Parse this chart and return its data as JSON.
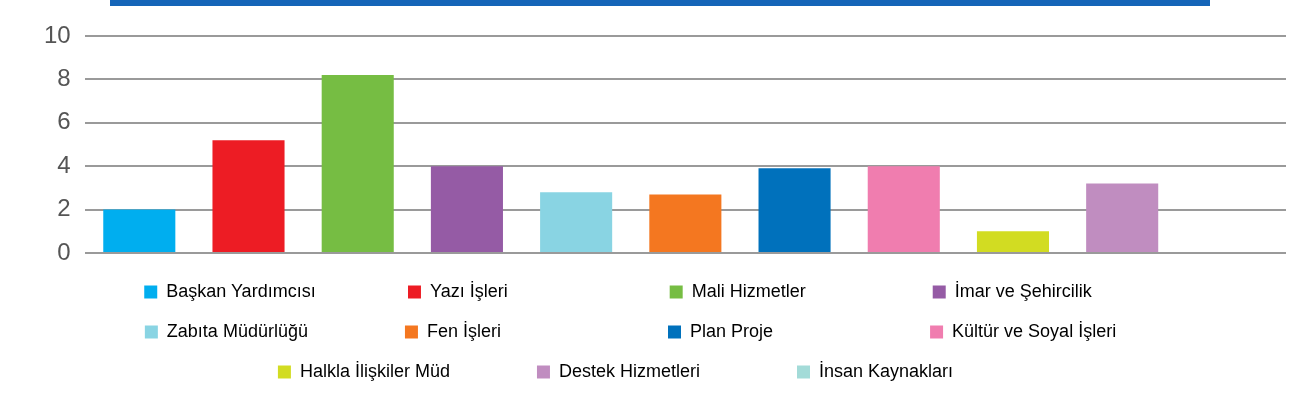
{
  "chart_data": {
    "type": "bar",
    "categories": [
      null
    ],
    "series": [
      {
        "name": "Başkan Yardımcısı",
        "color": "#00aeef",
        "values": [
          2
        ]
      },
      {
        "name": "Yazı İşleri",
        "color": "#ed1c24",
        "values": [
          5.2
        ]
      },
      {
        "name": "Mali Hizmetler",
        "color": "#76bd43",
        "values": [
          8.2
        ]
      },
      {
        "name": "İmar ve Şehircilik",
        "color": "#955ba5",
        "values": [
          4
        ]
      },
      {
        "name": "Zabıta Müdürlüğü",
        "color": "#89d4e3",
        "values": [
          2.8
        ]
      },
      {
        "name": "Fen İşleri",
        "color": "#f47720",
        "values": [
          2.7
        ]
      },
      {
        "name": "Plan Proje",
        "color": "#0071bc",
        "values": [
          3.9
        ]
      },
      {
        "name": "Kültür ve Soyal İşleri",
        "color": "#f07daf",
        "values": [
          4
        ]
      },
      {
        "name": "Halkla İlişkiler Müd",
        "color": "#d2dc22",
        "values": [
          1
        ]
      },
      {
        "name": "Destek Hizmetleri",
        "color": "#c08dc0",
        "values": [
          3.2
        ]
      },
      {
        "name": "İnsan Kaynakları",
        "color": "#a3dbd8",
        "values": [
          0
        ]
      }
    ],
    "ylim": [
      0,
      10
    ],
    "yticks": [
      0,
      2,
      4,
      6,
      8,
      10
    ],
    "grid": "y",
    "legend": "bottom",
    "tick_labels": "y"
  }
}
